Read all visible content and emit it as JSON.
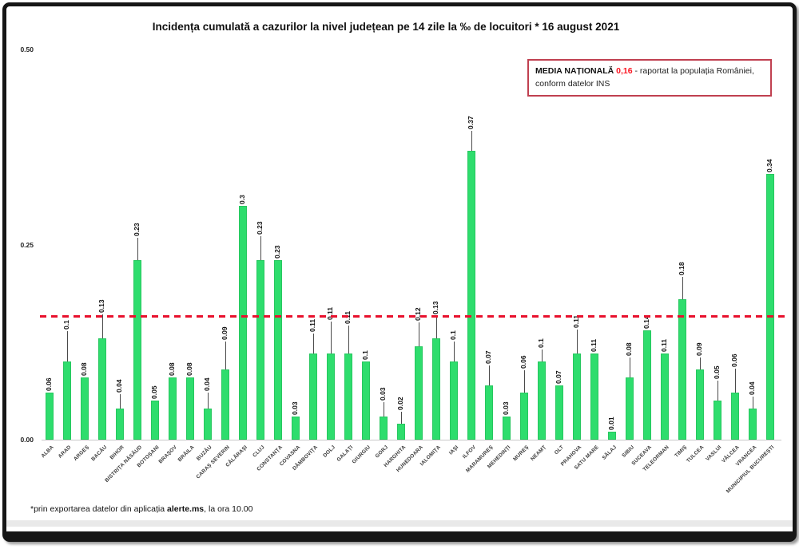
{
  "annotation": {
    "label": "MEDIA NAȚIONALĂ",
    "value": "0,16",
    "text": "- raportat la populația României, conform datelor INS"
  },
  "footnote": {
    "prefix": "*prin exportarea datelor din aplicația ",
    "bold": "alerte.ms",
    "suffix": ", la ora 10.00"
  },
  "chart_data": {
    "type": "bar",
    "title": "Incidența cumulată a cazurilor la nivel județean pe 14 zile la ‰ de locuitori *  16 august 2021",
    "xlabel": "",
    "ylabel": "",
    "ylim": [
      0,
      0.5
    ],
    "grid": false,
    "legend": false,
    "yticks": [
      {
        "label": "0.50",
        "value": 0.5
      },
      {
        "label": "0.25",
        "value": 0.25
      },
      {
        "label": "0.00",
        "value": 0
      }
    ],
    "reference_line": {
      "value": 0.16,
      "style": "dashed",
      "color": "#e8112d",
      "meaning": "media națională"
    },
    "bar_color": "#2edd6d",
    "categories": [
      "ALBA",
      "ARAD",
      "ARGEȘ",
      "BACĂU",
      "BIHOR",
      "BISTRIȚA NĂSĂUD",
      "BOTOȘANI",
      "BRAȘOV",
      "BRĂILA",
      "BUZĂU",
      "CARAȘ SEVERIN",
      "CĂLĂRAȘI",
      "CLUJ",
      "CONSTANȚA",
      "COVASNA",
      "DÂMBOVIȚA",
      "DOLJ",
      "GALAȚI",
      "GIURGIU",
      "GORJ",
      "HARGHITA",
      "HUNEDOARA",
      "IALOMIȚA",
      "IAȘI",
      "ILFOV",
      "MARAMUREȘ",
      "MEHEDINȚI",
      "MUREȘ",
      "NEAMȚ",
      "OLT",
      "PRAHOVA",
      "SATU MARE",
      "SĂLAJ",
      "SIBIU",
      "SUCEAVA",
      "TELEORMAN",
      "TIMIȘ",
      "TULCEA",
      "VASLUI",
      "VÂLCEA",
      "VRANCEA",
      "MUNICIPIUL BUCUREȘTI"
    ],
    "values": [
      0.06,
      0.1,
      0.08,
      0.13,
      0.04,
      0.23,
      0.05,
      0.08,
      0.08,
      0.04,
      0.09,
      0.3,
      0.23,
      0.23,
      0.03,
      0.11,
      0.11,
      0.11,
      0.1,
      0.03,
      0.02,
      0.12,
      0.13,
      0.1,
      0.37,
      0.07,
      0.03,
      0.06,
      0.1,
      0.07,
      0.11,
      0.11,
      0.01,
      0.08,
      0.14,
      0.11,
      0.18,
      0.09,
      0.05,
      0.06,
      0.04,
      0.34
    ],
    "leader_lengths": [
      0,
      38,
      0,
      30,
      18,
      28,
      0,
      0,
      0,
      20,
      35,
      0,
      30,
      0,
      0,
      25,
      40,
      35,
      0,
      18,
      15,
      30,
      28,
      25,
      25,
      25,
      0,
      28,
      15,
      0,
      30,
      0,
      0,
      25,
      0,
      0,
      28,
      15,
      25,
      30,
      15,
      0
    ]
  },
  "colors": {
    "bar": "#2edd6d",
    "reference_line": "#e8112d",
    "annotation_border": "#c04050",
    "annotation_value": "#fb1420"
  }
}
